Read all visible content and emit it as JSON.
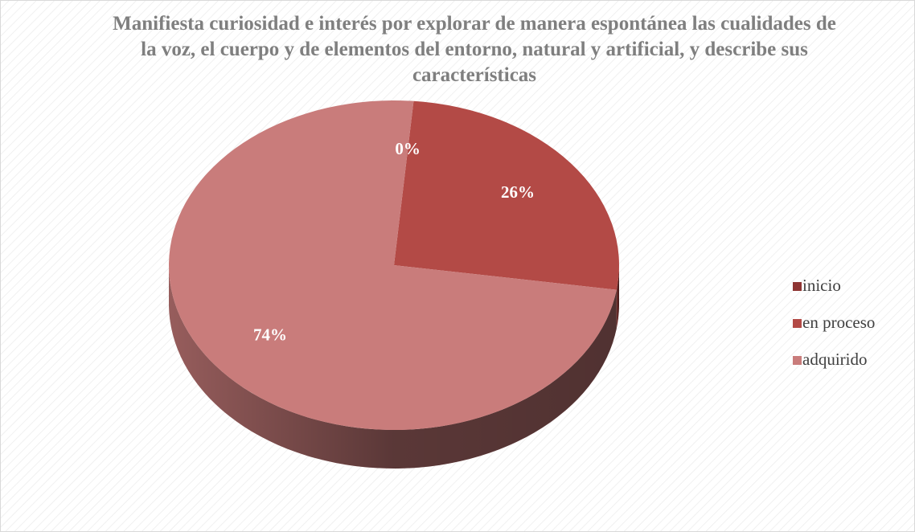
{
  "chart_data": {
    "type": "pie",
    "title": "Manifiesta curiosidad e interés por explorar de manera espontánea las cualidades de la voz, el cuerpo y de elementos del entorno, natural y artificial, y describe sus características",
    "categories": [
      "inicio",
      "en proceso",
      "adquirido"
    ],
    "values": [
      0,
      26,
      74
    ],
    "value_labels": [
      "0%",
      "26%",
      "74%"
    ],
    "colors": [
      "#8e3533",
      "#b34a46",
      "#c97c7b"
    ],
    "legend": "right"
  }
}
